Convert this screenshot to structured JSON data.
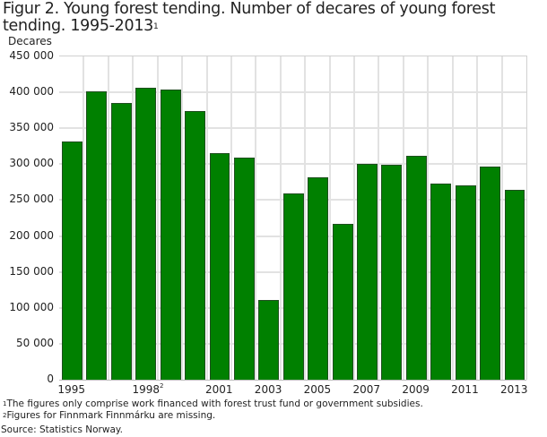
{
  "title": {
    "main": "Figur 2. Young forest tending. Number of decares of young forest tending. 1995-2013",
    "sup": "1"
  },
  "chart_data": {
    "type": "bar",
    "title": "Figur 2. Young forest tending. Number of decares of young forest tending. 1995-2013¹",
    "xlabel": "",
    "ylabel": "Decares",
    "ylim": [
      0,
      450000
    ],
    "yticks": [
      0,
      50000,
      100000,
      150000,
      200000,
      250000,
      300000,
      350000,
      400000,
      450000
    ],
    "ytick_labels": [
      "0",
      "50 000",
      "100 000",
      "150 000",
      "200 000",
      "250 000",
      "300 000",
      "350 000",
      "400 000",
      "450 000"
    ],
    "categories": [
      "1995",
      "1996",
      "1997",
      "1998",
      "1999",
      "2000",
      "2001",
      "2002",
      "2003",
      "2004",
      "2005",
      "2006",
      "2007",
      "2008",
      "2009",
      "2010",
      "2011",
      "2012",
      "2013"
    ],
    "values": [
      331000,
      402000,
      385000,
      406000,
      404000,
      374000,
      315000,
      309000,
      111000,
      259000,
      282000,
      217000,
      300000,
      299000,
      312000,
      273000,
      271000,
      297000,
      264000
    ],
    "xtick_labels": [
      {
        "index": 0,
        "label": "1995",
        "sup": ""
      },
      {
        "index": 3,
        "label": "1998",
        "sup": "2"
      },
      {
        "index": 6,
        "label": "2001",
        "sup": ""
      },
      {
        "index": 8,
        "label": "2003",
        "sup": ""
      },
      {
        "index": 10,
        "label": "2005",
        "sup": ""
      },
      {
        "index": 12,
        "label": "2007",
        "sup": ""
      },
      {
        "index": 14,
        "label": "2009",
        "sup": ""
      },
      {
        "index": 16,
        "label": "2011",
        "sup": ""
      },
      {
        "index": 18,
        "label": "2013",
        "sup": ""
      }
    ],
    "bar_color": "#008000",
    "grid": true,
    "legend": null
  },
  "footnotes": [
    {
      "sup": "1",
      "text": "The figures only comprise work financed with forest trust fund or government subsidies."
    },
    {
      "sup": "2",
      "text": "Figures for Finnmark Finnmárku are missing."
    }
  ],
  "source": "Source: Statistics Norway."
}
